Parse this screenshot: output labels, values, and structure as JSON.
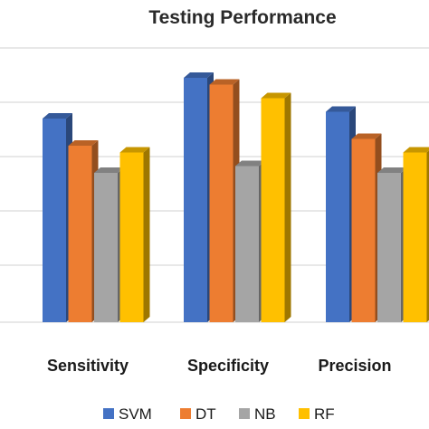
{
  "chart_data": {
    "type": "bar",
    "title": "Testing Performance",
    "categories": [
      "",
      "Sensitivity",
      "Specificity",
      "Precision"
    ],
    "series": [
      {
        "name": "SVM",
        "color": "#4472C4",
        "values": [
          95.5,
          95.0,
          98.0,
          95.5
        ]
      },
      {
        "name": "DT",
        "color": "#ED7D31",
        "values": [
          94.0,
          93.0,
          97.5,
          93.5
        ]
      },
      {
        "name": "NB",
        "color": "#A5A5A5",
        "values": [
          91.5,
          91.0,
          91.5,
          91.0
        ]
      },
      {
        "name": "RF",
        "color": "#FFC000",
        "values": [
          93.5,
          92.5,
          96.5,
          92.5
        ]
      }
    ],
    "ylim": [
      80,
      100
    ],
    "grid": true,
    "legend": "bottom",
    "xlabel": "",
    "ylabel": ""
  }
}
